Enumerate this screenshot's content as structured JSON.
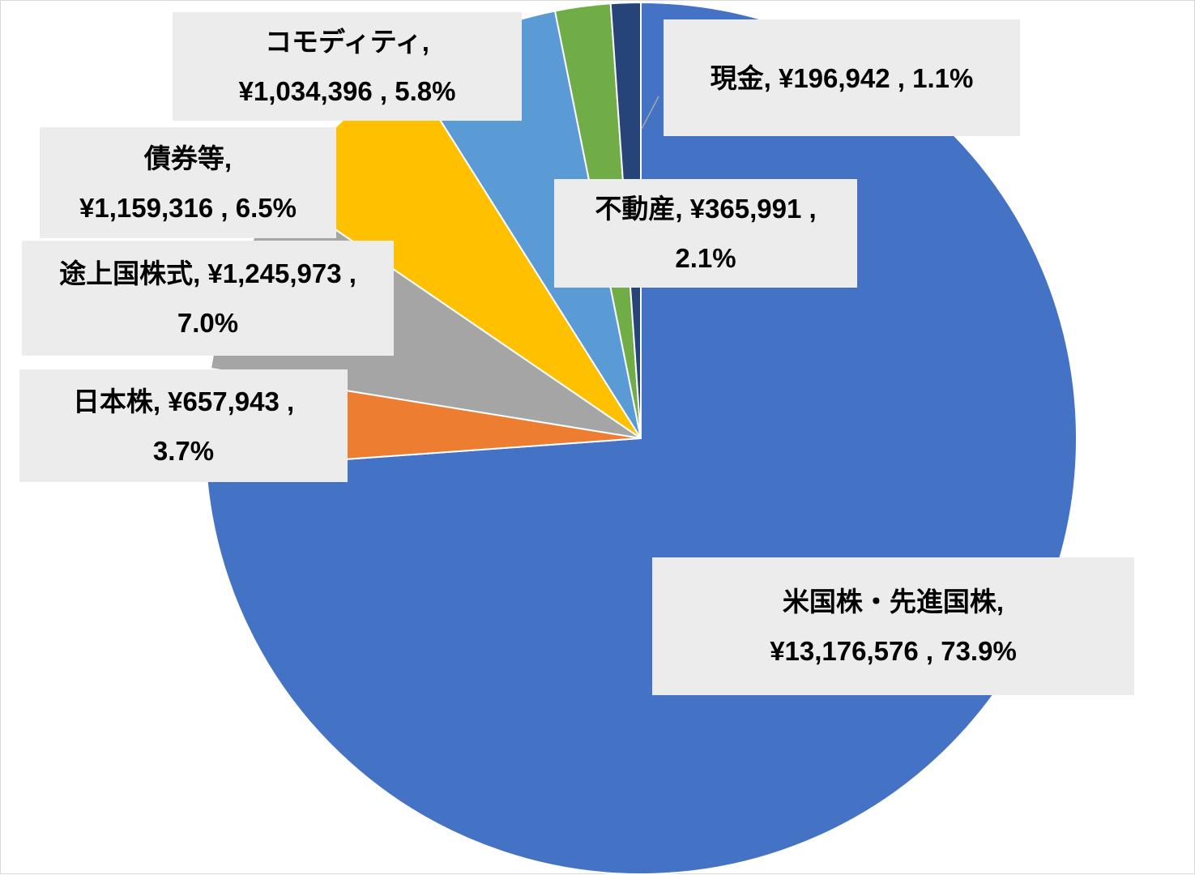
{
  "chart_data": {
    "type": "pie",
    "title": "",
    "slices": [
      {
        "name": "米国株・先進国株",
        "value": 13176576,
        "percent": 73.9,
        "color": "#4472c4",
        "line1": "米国株・先進国株,",
        "line2": "¥13,176,576 , 73.9%"
      },
      {
        "name": "日本株",
        "value": 657943,
        "percent": 3.7,
        "color": "#ed7d31",
        "line1": "日本株, ¥657,943 ,",
        "line2": "3.7%"
      },
      {
        "name": "途上国株式",
        "value": 1245973,
        "percent": 7.0,
        "color": "#a5a5a5",
        "line1": "途上国株式, ¥1,245,973 ,",
        "line2": "7.0%"
      },
      {
        "name": "債券等",
        "value": 1159316,
        "percent": 6.5,
        "color": "#ffc000",
        "line1": "債券等,",
        "line2": "¥1,159,316 , 6.5%"
      },
      {
        "name": "コモディティ",
        "value": 1034396,
        "percent": 5.8,
        "color": "#5b9bd5",
        "line1": "コモディティ,",
        "line2": "¥1,034,396 , 5.8%"
      },
      {
        "name": "不動産",
        "value": 365991,
        "percent": 2.1,
        "color": "#70ad47",
        "line1": "不動産, ¥365,991 ,",
        "line2": "2.1%"
      },
      {
        "name": "現金",
        "value": 196942,
        "percent": 1.1,
        "color": "#264478",
        "line1": "現金, ¥196,942 , 1.1%",
        "line2": ""
      }
    ]
  }
}
